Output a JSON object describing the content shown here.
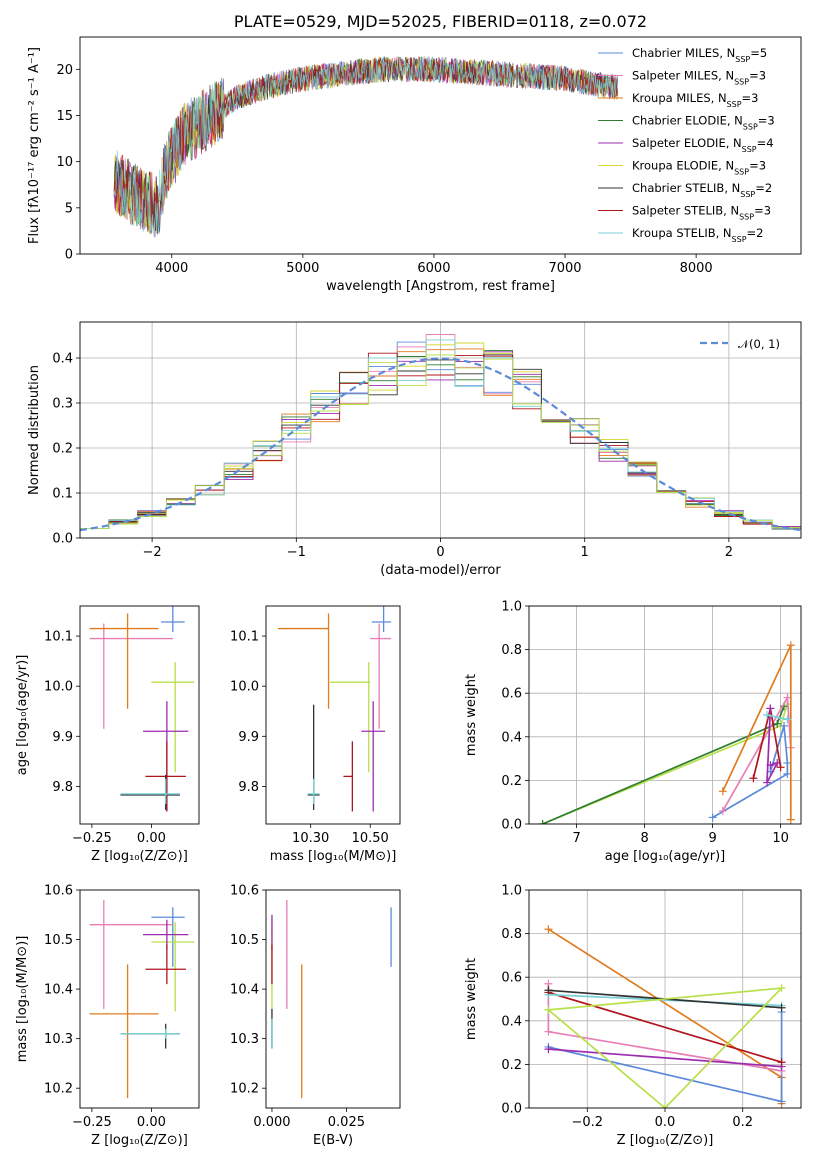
{
  "title": "PLATE=0529, MJD=52025, FIBERID=0118, z=0.072",
  "colors": {
    "chabrier_miles": "#5b8bd9",
    "salpeter_miles": "#e87eb5",
    "kroupa_miles": "#e07b1e",
    "chabrier_elodie": "#2e7d32",
    "salpeter_elodie": "#9c2bb0",
    "kroupa_elodie": "#d4d62a",
    "chabrier_stelib": "#333333",
    "salpeter_stelib": "#b0151c",
    "kroupa_stelib": "#78d0d8",
    "lime": "#b8e04a",
    "gaussian": "#5b8bd9"
  },
  "chart_data": [
    {
      "id": "spectrum",
      "type": "line",
      "xlabel": "wavelength [Angstrom, rest frame]",
      "ylabel": "Flux [fλ10⁻¹⁷ erg cm⁻² s⁻¹ A⁻¹]",
      "xlim": [
        3300,
        8800
      ],
      "ylim": [
        0,
        23.5
      ],
      "xticks": [
        4000,
        5000,
        6000,
        7000,
        8000
      ],
      "yticks": [
        0,
        5,
        10,
        15,
        20
      ],
      "legend_position": "upper-right",
      "continuum_x": [
        3560,
        3700,
        3900,
        3950,
        4100,
        4300,
        4500,
        4700,
        5000,
        5300,
        5600,
        6000,
        6500,
        7000,
        7400
      ],
      "continuum_y": [
        8,
        6.5,
        5,
        9,
        13,
        15,
        17,
        18,
        19,
        19.5,
        20,
        20,
        19.5,
        19,
        18
      ],
      "series": [
        {
          "name": "Chabrier MILES, N",
          "sub": "SSP",
          "suffix": "=5",
          "color": "chabrier_miles"
        },
        {
          "name": "Salpeter MILES, N",
          "sub": "SSP",
          "suffix": "=3",
          "color": "salpeter_miles"
        },
        {
          "name": "Kroupa MILES, N",
          "sub": "SSP",
          "suffix": "=3",
          "color": "kroupa_miles"
        },
        {
          "name": "Chabrier ELODIE, N",
          "sub": "SSP",
          "suffix": "=3",
          "color": "chabrier_elodie"
        },
        {
          "name": "Salpeter ELODIE, N",
          "sub": "SSP",
          "suffix": "=4",
          "color": "salpeter_elodie"
        },
        {
          "name": "Kroupa ELODIE, N",
          "sub": "SSP",
          "suffix": "=3",
          "color": "kroupa_elodie"
        },
        {
          "name": "Chabrier STELIB, N",
          "sub": "SSP",
          "suffix": "=2",
          "color": "chabrier_stelib"
        },
        {
          "name": "Salpeter STELIB, N",
          "sub": "SSP",
          "suffix": "=3",
          "color": "salpeter_stelib"
        },
        {
          "name": "Kroupa STELIB, N",
          "sub": "SSP",
          "suffix": "=2",
          "color": "kroupa_stelib"
        }
      ]
    },
    {
      "id": "residuals",
      "type": "histogram",
      "xlabel": "(data-model)/error",
      "ylabel": "Normed distribution",
      "xlim": [
        -2.5,
        2.5
      ],
      "ylim": [
        0,
        0.48
      ],
      "xticks": [
        -2,
        -1,
        0,
        1,
        2
      ],
      "yticks": [
        0.0,
        0.1,
        0.2,
        0.3,
        0.4
      ],
      "grid": true,
      "legend": "𝒩(0, 1)",
      "bins": [
        -2.5,
        -2.3,
        -2.1,
        -1.9,
        -1.7,
        -1.5,
        -1.3,
        -1.1,
        -0.9,
        -0.7,
        -0.5,
        -0.3,
        -0.1,
        0.1,
        0.3,
        0.5,
        0.7,
        0.9,
        1.1,
        1.3,
        1.5,
        1.7,
        1.9,
        2.1,
        2.3,
        2.5
      ],
      "gaussian": {
        "mean": 0,
        "sigma": 1
      }
    },
    {
      "id": "age-vs-Z",
      "type": "errorbar",
      "xlabel": "Z [log₁₀(Z/Z⊙)]",
      "ylabel": "age  [log₁₀(age/yr)]",
      "xlim": [
        -0.3,
        0.2
      ],
      "ylim": [
        9.725,
        10.16
      ],
      "xticks": [
        -0.25,
        0.0
      ],
      "xticklabels": [
        "−0.25",
        "0.00"
      ],
      "yticks": [
        9.8,
        9.9,
        10.0,
        10.1
      ],
      "points": [
        {
          "c": "chabrier_miles",
          "x": 0.09,
          "y": 10.128,
          "xe": [
            0.05,
            0.05
          ],
          "ye": [
            0.02,
            0.07
          ]
        },
        {
          "c": "salpeter_miles",
          "x": -0.2,
          "y": 10.095,
          "xe": [
            0.06,
            0.29
          ],
          "ye": [
            0.18,
            0.03
          ]
        },
        {
          "c": "kroupa_miles",
          "x": -0.1,
          "y": 10.115,
          "xe": [
            0.16,
            0.13
          ],
          "ye": [
            0.16,
            0.03
          ]
        },
        {
          "c": "lime",
          "x": 0.1,
          "y": 10.008,
          "xe": [
            0.1,
            0.08
          ],
          "ye": [
            0.18,
            0.04
          ]
        },
        {
          "c": "salpeter_elodie",
          "x": 0.065,
          "y": 9.91,
          "xe": [
            0.1,
            0.09
          ],
          "ye": [
            0.16,
            0.06
          ]
        },
        {
          "c": "salpeter_stelib",
          "x": 0.065,
          "y": 9.82,
          "xe": [
            0.09,
            0.08
          ],
          "ye": [
            0.07,
            0.07
          ]
        },
        {
          "c": "chabrier_stelib",
          "x": 0.06,
          "y": 9.783,
          "xe": [
            0.19,
            0.06
          ],
          "ye": [
            0.03,
            0.04
          ]
        },
        {
          "c": "kroupa_stelib",
          "x": 0.06,
          "y": 9.785,
          "xe": [
            0.19,
            0.06
          ],
          "ye": [
            0.02,
            0.03
          ]
        }
      ]
    },
    {
      "id": "age-vs-mass",
      "type": "errorbar",
      "xlabel": "mass [log₁₀(M/M⊙)]",
      "ylabel": "",
      "xlim": [
        10.15,
        10.6
      ],
      "ylim": [
        9.725,
        10.16
      ],
      "xticks": [
        10.3,
        10.5
      ],
      "xticklabels": [
        "10.30",
        "10.50"
      ],
      "yticks": [
        9.8,
        9.9,
        10.0,
        10.1
      ],
      "points": [
        {
          "c": "chabrier_miles",
          "x": 10.545,
          "y": 10.128,
          "xe": [
            0.04,
            0.025
          ],
          "ye": [
            0.02,
            0.07
          ]
        },
        {
          "c": "salpeter_miles",
          "x": 10.53,
          "y": 10.095,
          "xe": [
            0.03,
            0.04
          ],
          "ye": [
            0.18,
            0.03
          ]
        },
        {
          "c": "kroupa_miles",
          "x": 10.36,
          "y": 10.115,
          "xe": [
            0.17,
            0.0
          ],
          "ye": [
            0.16,
            0.03
          ]
        },
        {
          "c": "lime",
          "x": 10.495,
          "y": 10.008,
          "xe": [
            0.13,
            0.005
          ],
          "ye": [
            0.18,
            0.04
          ]
        },
        {
          "c": "salpeter_elodie",
          "x": 10.51,
          "y": 9.91,
          "xe": [
            0.04,
            0.04
          ],
          "ye": [
            0.16,
            0.06
          ]
        },
        {
          "c": "salpeter_stelib",
          "x": 10.44,
          "y": 9.82,
          "xe": [
            0.03,
            0.0
          ],
          "ye": [
            0.07,
            0.07
          ]
        },
        {
          "c": "chabrier_stelib",
          "x": 10.31,
          "y": 9.783,
          "xe": [
            0.02,
            0.02
          ],
          "ye": [
            0.03,
            0.18
          ]
        },
        {
          "c": "kroupa_stelib",
          "x": 10.31,
          "y": 9.785,
          "xe": [
            0.02,
            0.02
          ],
          "ye": [
            0.02,
            0.03
          ]
        }
      ]
    },
    {
      "id": "massweight-vs-age",
      "type": "line",
      "xlabel": "age  [log₁₀(age/yr)]",
      "ylabel": "mass weight",
      "xlim": [
        6.3,
        10.3
      ],
      "ylim": [
        0,
        1
      ],
      "xticks": [
        7,
        8,
        9,
        10
      ],
      "yticks": [
        0.0,
        0.2,
        0.4,
        0.6,
        0.8,
        1.0
      ],
      "grid": true,
      "series": [
        {
          "c": "lime",
          "x": [
            6.5,
            10.0,
            10.1
          ],
          "y": [
            0.0,
            0.45,
            0.55
          ]
        },
        {
          "c": "chabrier_elodie",
          "x": [
            6.5,
            9.95,
            10.05
          ],
          "y": [
            0.0,
            0.46,
            0.54
          ]
        },
        {
          "c": "chabrier_miles",
          "x": [
            9.0,
            10.1,
            10.1,
            10.05,
            9.85
          ],
          "y": [
            0.03,
            0.23,
            0.28,
            0.45,
            0.24
          ]
        },
        {
          "c": "salpeter_miles",
          "x": [
            9.15,
            10.1,
            10.15
          ],
          "y": [
            0.06,
            0.58,
            0.35
          ]
        },
        {
          "c": "kroupa_miles",
          "x": [
            9.15,
            10.15,
            10.15
          ],
          "y": [
            0.15,
            0.82,
            0.02
          ]
        },
        {
          "c": "salpeter_stelib",
          "x": [
            9.6,
            9.85,
            10.0
          ],
          "y": [
            0.21,
            0.53,
            0.26
          ]
        },
        {
          "c": "salpeter_elodie",
          "x": [
            9.85,
            9.95,
            9.8,
            9.85
          ],
          "y": [
            0.27,
            0.28,
            0.19,
            0.53
          ]
        },
        {
          "c": "kroupa_stelib",
          "x": [
            9.8,
            10.1
          ],
          "y": [
            0.5,
            0.48
          ]
        }
      ]
    },
    {
      "id": "mass-vs-Z",
      "type": "errorbar",
      "xlabel": "Z [log₁₀(Z/Z⊙)]",
      "ylabel": "mass [log₁₀(M/M⊙)]",
      "xlim": [
        -0.3,
        0.2
      ],
      "ylim": [
        10.16,
        10.6
      ],
      "xticks": [
        -0.25,
        0.0
      ],
      "xticklabels": [
        "−0.25",
        "0.00"
      ],
      "yticks": [
        10.2,
        10.3,
        10.4,
        10.5,
        10.6
      ],
      "points": [
        {
          "c": "chabrier_miles",
          "x": 0.09,
          "y": 10.545,
          "xe": [
            0.09,
            0.05
          ],
          "ye": [
            0.1,
            0.02
          ]
        },
        {
          "c": "salpeter_miles",
          "x": -0.2,
          "y": 10.53,
          "xe": [
            0.06,
            0.29
          ],
          "ye": [
            0.17,
            0.05
          ]
        },
        {
          "c": "kroupa_miles",
          "x": -0.1,
          "y": 10.35,
          "xe": [
            0.16,
            0.13
          ],
          "ye": [
            0.17,
            0.1
          ]
        },
        {
          "c": "lime",
          "x": 0.1,
          "y": 10.495,
          "xe": [
            0.1,
            0.08
          ],
          "ye": [
            0.14,
            0.04
          ]
        },
        {
          "c": "salpeter_elodie",
          "x": 0.065,
          "y": 10.51,
          "xe": [
            0.1,
            0.09
          ],
          "ye": [
            0.03,
            0.03
          ]
        },
        {
          "c": "salpeter_stelib",
          "x": 0.065,
          "y": 10.44,
          "xe": [
            0.09,
            0.08
          ],
          "ye": [
            0.03,
            0.05
          ]
        },
        {
          "c": "chabrier_stelib",
          "x": 0.06,
          "y": 10.31,
          "xe": [
            0.19,
            0.06
          ],
          "ye": [
            0.03,
            0.02
          ]
        },
        {
          "c": "kroupa_stelib",
          "x": 0.06,
          "y": 10.31,
          "xe": [
            0.19,
            0.06
          ],
          "ye": [
            0.01,
            0.01
          ]
        }
      ]
    },
    {
      "id": "ebv",
      "type": "errorbar",
      "xlabel": "E(B-V)",
      "ylabel": "",
      "xlim": [
        -0.002,
        0.043
      ],
      "ylim": [
        10.16,
        10.6
      ],
      "xticks": [
        0.0,
        0.025
      ],
      "xticklabels": [
        "0.000",
        "0.025"
      ],
      "yticks": [
        10.2,
        10.3,
        10.4,
        10.5,
        10.6
      ],
      "points": [
        {
          "c": "chabrier_miles",
          "x": 0.04,
          "y": 10.545,
          "xe": [
            0,
            0
          ],
          "ye": [
            0.1,
            0.02
          ]
        },
        {
          "c": "salpeter_miles",
          "x": 0.005,
          "y": 10.53,
          "xe": [
            0,
            0
          ],
          "ye": [
            0.17,
            0.05
          ]
        },
        {
          "c": "kroupa_miles",
          "x": 0.01,
          "y": 10.35,
          "xe": [
            0,
            0
          ],
          "ye": [
            0.17,
            0.1
          ]
        },
        {
          "c": "lime",
          "x": 0.0,
          "y": 10.495,
          "xe": [
            0,
            0
          ],
          "ye": [
            0.14,
            0.04
          ]
        },
        {
          "c": "salpeter_elodie",
          "x": 0.0,
          "y": 10.51,
          "xe": [
            0,
            0
          ],
          "ye": [
            0.03,
            0.04
          ]
        },
        {
          "c": "salpeter_stelib",
          "x": 0.0,
          "y": 10.44,
          "xe": [
            0,
            0
          ],
          "ye": [
            0.03,
            0.05
          ]
        },
        {
          "c": "chabrier_stelib",
          "x": 0.0,
          "y": 10.31,
          "xe": [
            0,
            0
          ],
          "ye": [
            0.03,
            0.05
          ]
        },
        {
          "c": "kroupa_stelib",
          "x": 0.0,
          "y": 10.31,
          "xe": [
            0,
            0
          ],
          "ye": [
            0.03,
            0.03
          ]
        }
      ]
    },
    {
      "id": "massweight-vs-Z",
      "type": "line",
      "xlabel": "Z [log₁₀(Z/Z⊙)]",
      "ylabel": "mass weight",
      "xlim": [
        -0.35,
        0.35
      ],
      "ylim": [
        0,
        1
      ],
      "xticks": [
        -0.2,
        0.0,
        0.2
      ],
      "xticklabels": [
        "−0.2",
        "0.0",
        "0.2"
      ],
      "yticks": [
        0.0,
        0.2,
        0.4,
        0.6,
        0.8,
        1.0
      ],
      "grid": true,
      "series": [
        {
          "c": "kroupa_miles",
          "x": [
            -0.3,
            0.3,
            0.3
          ],
          "y": [
            0.82,
            0.14,
            0.02
          ]
        },
        {
          "c": "chabrier_miles",
          "x": [
            -0.3,
            0.3,
            0.3
          ],
          "y": [
            0.28,
            0.03,
            0.44
          ]
        },
        {
          "c": "salpeter_miles",
          "x": [
            -0.3,
            -0.3,
            0.3
          ],
          "y": [
            0.57,
            0.35,
            0.17
          ]
        },
        {
          "c": "salpeter_elodie",
          "x": [
            -0.3,
            0.3
          ],
          "y": [
            0.27,
            0.19
          ]
        },
        {
          "c": "salpeter_stelib",
          "x": [
            -0.3,
            0.3
          ],
          "y": [
            0.53,
            0.21
          ]
        },
        {
          "c": "kroupa_stelib",
          "x": [
            -0.3,
            0.3
          ],
          "y": [
            0.52,
            0.47
          ]
        },
        {
          "c": "chabrier_stelib",
          "x": [
            -0.3,
            0.3
          ],
          "y": [
            0.54,
            0.46
          ]
        },
        {
          "c": "lime",
          "x": [
            -0.3,
            0.0,
            0.3,
            -0.3
          ],
          "y": [
            0.45,
            0.0,
            0.55,
            0.45
          ]
        }
      ]
    }
  ]
}
